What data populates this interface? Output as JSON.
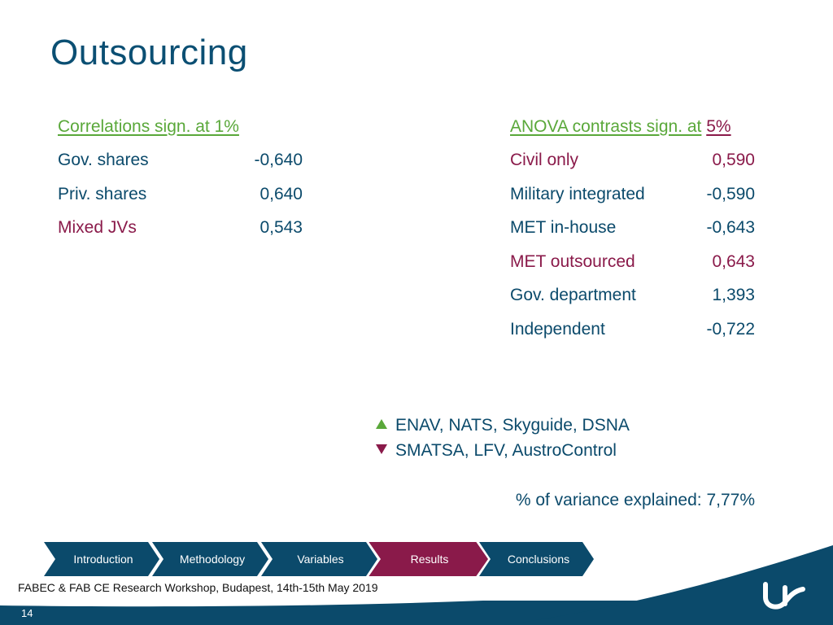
{
  "slide": {
    "title": "Outsourcing",
    "page_number": "14",
    "footer": "FABEC & FAB CE Research Workshop, Budapest, 14th-15th May 2019"
  },
  "correlations": {
    "header": "Correlations sign. at 1%",
    "rows": [
      {
        "label": "Gov. shares",
        "value": "-0,640"
      },
      {
        "label": "Priv. shares",
        "value": "0,640"
      },
      {
        "label": "Mixed JVs",
        "value": "0,543"
      }
    ]
  },
  "anova": {
    "header_main": "ANOVA contrasts sign. at",
    "header_level": "5%",
    "rows": [
      {
        "label": "Civil only",
        "value": "0,590"
      },
      {
        "label": "Military integrated",
        "value": "-0,590"
      },
      {
        "label": "MET in-house",
        "value": "-0,643"
      },
      {
        "label": "MET outsourced",
        "value": "0,643"
      },
      {
        "label": "Gov. department",
        "value": "1,393"
      },
      {
        "label": "Independent",
        "value": "-0,722"
      }
    ]
  },
  "legend": {
    "up": "ENAV, NATS, Skyguide, DSNA",
    "down": "SMATSA, LFV, AustroControl"
  },
  "variance_text": "% of variance explained: 7,77%",
  "nav": {
    "items": [
      "Introduction",
      "Methodology",
      "Variables",
      "Results",
      "Conclusions"
    ],
    "active": "Results"
  },
  "colors": {
    "navy": "#0b4a6b",
    "green": "#5aa83a",
    "maroon": "#8a1a4a",
    "nav_bg": "#0b4a6b",
    "nav_active": "#8a1a4a"
  }
}
